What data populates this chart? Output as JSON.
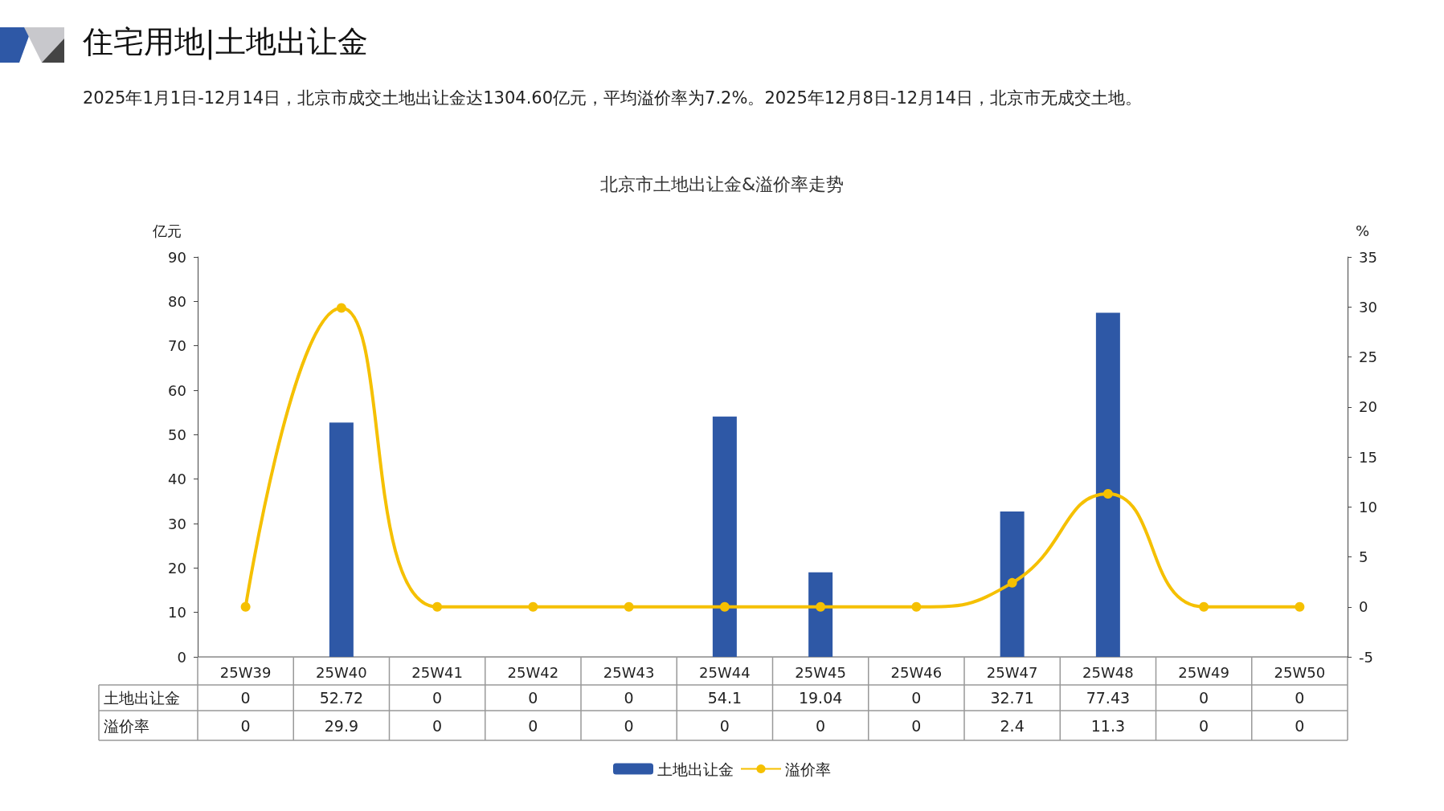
{
  "chart_data": {
    "type": "bar",
    "title": "住宅用地|土地出让金",
    "subtitle": "2025年1月1日-12月14日，北京市成交土地出让金达1304.60亿元，平均溢价率为7.2%。2025年12月8日-12月14日，北京市无成交土地。",
    "annotations": [
      "北京市土地出让金&溢价率走势"
    ],
    "ylabel": "亿元",
    "y2label": "%",
    "categories": [
      "25W39",
      "25W40",
      "25W41",
      "25W42",
      "25W43",
      "25W44",
      "25W45",
      "25W46",
      "25W47",
      "25W48",
      "25W49",
      "25W50"
    ],
    "series": [
      {
        "name": "土地出让金",
        "color": "#2e58a6",
        "values": [
          0,
          52.72,
          0,
          0,
          0,
          54.1,
          19.04,
          0,
          32.71,
          77.43,
          0,
          0
        ]
      },
      {
        "name": "溢价率",
        "type": "line",
        "axis": "y2",
        "color": "#f5c000",
        "values": [
          0,
          29.9,
          0,
          0,
          0,
          0,
          0,
          0,
          2.4,
          11.3,
          0,
          0
        ]
      }
    ],
    "ylim": [
      0,
      90
    ],
    "yticks": [
      0,
      10,
      20,
      30,
      40,
      50,
      60,
      70,
      80,
      90
    ],
    "y2lim": [
      -5,
      35
    ],
    "y2ticks": [
      -5,
      0,
      5,
      10,
      15,
      20,
      25,
      30,
      35
    ],
    "data_labels": true,
    "legend": "bottom",
    "grid": false,
    "marker": "circle",
    "line_style": "solid"
  }
}
